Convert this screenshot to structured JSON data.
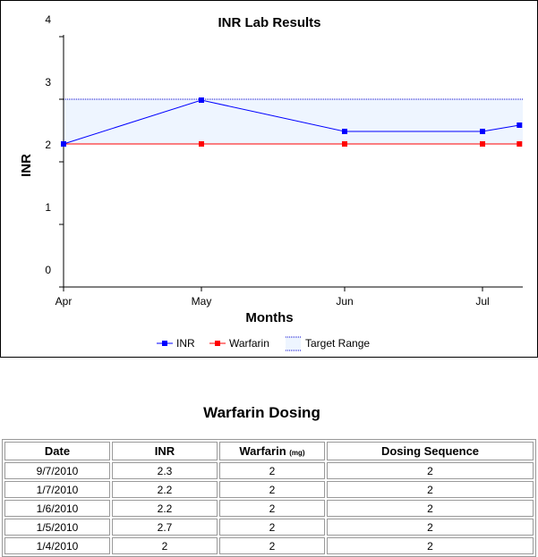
{
  "chart_data": {
    "type": "line",
    "title": "INR Lab Results",
    "xlabel": "Months",
    "ylabel": "INR",
    "x_ticks": [
      "Apr",
      "May",
      "Jun",
      "Jul"
    ],
    "y_ticks": [
      0,
      1,
      2,
      3,
      4
    ],
    "ylim": [
      0,
      4
    ],
    "xlim": [
      "2010-04-01",
      "2010-07-31"
    ],
    "target_range": {
      "name": "Target Range",
      "low": 2,
      "high": 3,
      "color": "#eef5ff",
      "border": "#0000cc"
    },
    "series": [
      {
        "name": "INR",
        "color": "#0000ff",
        "points": [
          {
            "x": "2010-04-01",
            "y": 2.0
          },
          {
            "x": "2010-05-01",
            "y": 2.7
          },
          {
            "x": "2010-06-01",
            "y": 2.2
          },
          {
            "x": "2010-07-01",
            "y": 2.2
          },
          {
            "x": "2010-07-09",
            "y": 2.3
          }
        ]
      },
      {
        "name": "Warfarin",
        "color": "#ff0000",
        "points": [
          {
            "x": "2010-04-01",
            "y": 2
          },
          {
            "x": "2010-05-01",
            "y": 2
          },
          {
            "x": "2010-06-01",
            "y": 2
          },
          {
            "x": "2010-07-01",
            "y": 2
          },
          {
            "x": "2010-07-09",
            "y": 2
          }
        ]
      }
    ],
    "legend_position": "bottom",
    "grid": false
  },
  "table": {
    "title": "Warfarin Dosing",
    "headers": {
      "date": "Date",
      "inr": "INR",
      "warfarin": "Warfarin",
      "warfarin_unit": "(mg)",
      "sequence": "Dosing Sequence"
    },
    "rows": [
      {
        "date": "9/7/2010",
        "inr": "2.3",
        "warfarin": "2",
        "sequence": "2"
      },
      {
        "date": "1/7/2010",
        "inr": "2.2",
        "warfarin": "2",
        "sequence": "2"
      },
      {
        "date": "1/6/2010",
        "inr": "2.2",
        "warfarin": "2",
        "sequence": "2"
      },
      {
        "date": "1/5/2010",
        "inr": "2.7",
        "warfarin": "2",
        "sequence": "2"
      },
      {
        "date": "1/4/2010",
        "inr": "2",
        "warfarin": "2",
        "sequence": "2"
      }
    ]
  }
}
